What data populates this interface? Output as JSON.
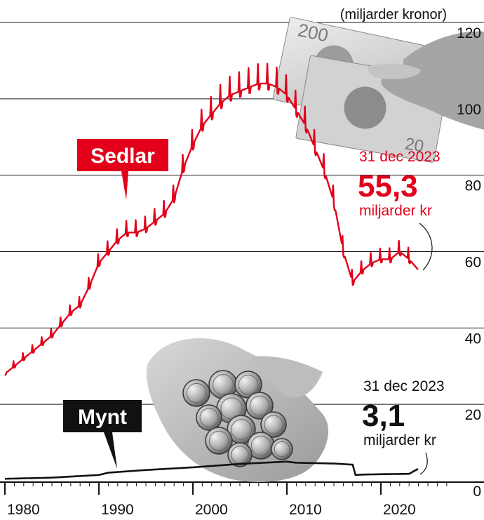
{
  "chart_data": {
    "type": "line",
    "unit_label": "(miljarder kronor)",
    "x_ticks": [
      "1980",
      "1990",
      "2000",
      "2010",
      "2020"
    ],
    "y_ticks": [
      "120",
      "100",
      "80",
      "60",
      "40",
      "20",
      "0"
    ],
    "xlim": [
      1979.5,
      2027
    ],
    "ylim": [
      0,
      120
    ],
    "grid": true,
    "colors": {
      "sedlar": "#e2001a",
      "mynt": "#111111"
    },
    "series": [
      {
        "name": "Sedlar",
        "label": "Sedlar",
        "annotation": {
          "date": "31 dec 2023",
          "value": "55,3",
          "unit": "miljarder kr"
        },
        "points": [
          [
            1980,
            28
          ],
          [
            1981,
            30
          ],
          [
            1982,
            32
          ],
          [
            1983,
            34
          ],
          [
            1984,
            36
          ],
          [
            1985,
            38
          ],
          [
            1986,
            41
          ],
          [
            1987,
            44
          ],
          [
            1988,
            46
          ],
          [
            1989,
            51
          ],
          [
            1990,
            57
          ],
          [
            1991,
            60
          ],
          [
            1992,
            63
          ],
          [
            1993,
            65
          ],
          [
            1994,
            65
          ],
          [
            1995,
            66
          ],
          [
            1996,
            68
          ],
          [
            1997,
            70
          ],
          [
            1998,
            74
          ],
          [
            1999,
            82
          ],
          [
            2000,
            88
          ],
          [
            2001,
            93
          ],
          [
            2002,
            96
          ],
          [
            2003,
            99
          ],
          [
            2004,
            101
          ],
          [
            2005,
            102
          ],
          [
            2006,
            103
          ],
          [
            2007,
            104
          ],
          [
            2008,
            104
          ],
          [
            2009,
            103
          ],
          [
            2010,
            101
          ],
          [
            2011,
            97
          ],
          [
            2012,
            93
          ],
          [
            2013,
            87
          ],
          [
            2014,
            81
          ],
          [
            2015,
            73
          ],
          [
            2016,
            60
          ],
          [
            2017,
            52
          ],
          [
            2018,
            55
          ],
          [
            2019,
            57
          ],
          [
            2020,
            58
          ],
          [
            2021,
            58
          ],
          [
            2022,
            60
          ],
          [
            2023,
            58
          ],
          [
            2023.95,
            55.3
          ]
        ]
      },
      {
        "name": "Mynt",
        "label": "Mynt",
        "annotation": {
          "date": "31 dec 2023",
          "value": "3,1",
          "unit": "miljarder kr"
        },
        "points": [
          [
            1980,
            0.5
          ],
          [
            1985,
            0.8
          ],
          [
            1990,
            1.5
          ],
          [
            1991,
            2.1
          ],
          [
            1995,
            2.8
          ],
          [
            2000,
            3.5
          ],
          [
            2005,
            4.4
          ],
          [
            2010,
            5.0
          ],
          [
            2011,
            4.7
          ],
          [
            2015,
            4.5
          ],
          [
            2017,
            4.2
          ],
          [
            2017.3,
            1.5
          ],
          [
            2018,
            1.6
          ],
          [
            2020,
            1.7
          ],
          [
            2023,
            1.8
          ],
          [
            2023.95,
            3.1
          ]
        ]
      }
    ]
  }
}
